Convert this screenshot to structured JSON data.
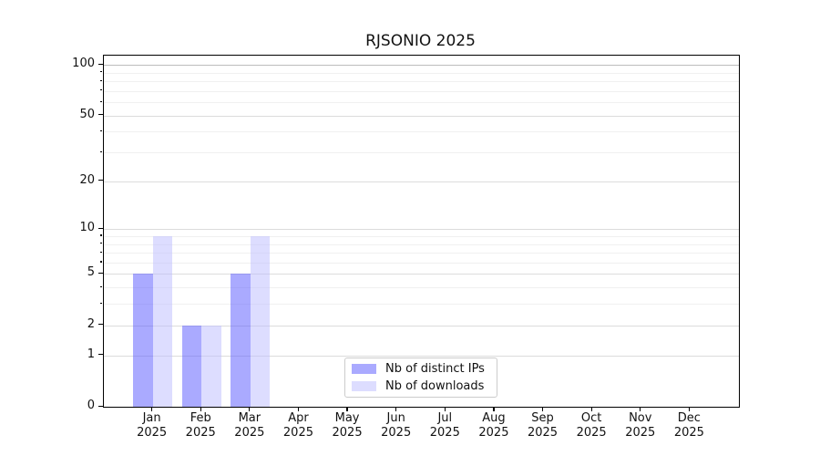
{
  "title": "RJSONIO 2025",
  "chart_data": {
    "type": "bar",
    "title": "RJSONIO 2025",
    "scale": "log10(1+y)",
    "categories": [
      "Jan",
      "Feb",
      "Mar",
      "Apr",
      "May",
      "Jun",
      "Jul",
      "Aug",
      "Sep",
      "Oct",
      "Nov",
      "Dec"
    ],
    "year_label": "2025",
    "series": [
      {
        "name": "Nb of distinct IPs",
        "color": "#5555ff",
        "opacity": 0.5,
        "values": [
          5,
          2,
          5,
          0,
          0,
          0,
          0,
          0,
          0,
          0,
          0,
          0
        ]
      },
      {
        "name": "Nb of downloads",
        "color": "#bbbbff",
        "opacity": 0.5,
        "values": [
          9,
          2,
          9,
          0,
          0,
          0,
          0,
          0,
          0,
          0,
          0,
          0
        ]
      }
    ],
    "yticks": [
      0,
      1,
      2,
      5,
      10,
      20,
      50,
      100
    ],
    "yticks_minor": [
      3,
      4,
      6,
      7,
      8,
      9,
      30,
      40,
      60,
      70,
      80,
      90
    ],
    "ylim": [
      0,
      113.4
    ],
    "grid": true,
    "legend_position": "lower-center-inside"
  }
}
